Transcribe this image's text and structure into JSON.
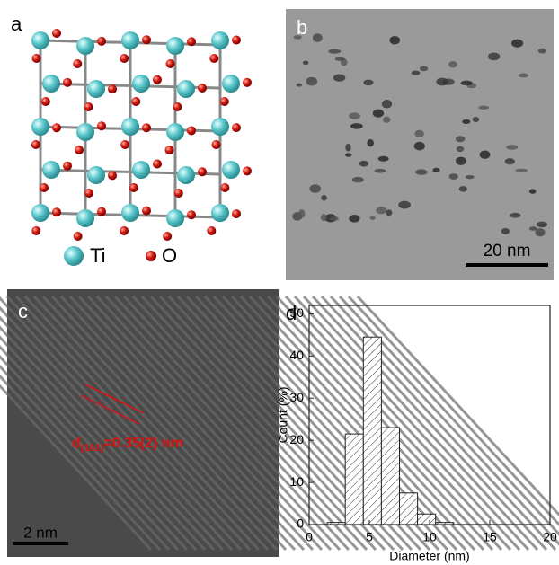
{
  "panels": {
    "a": {
      "label": "a",
      "legend": [
        "Ti",
        "O"
      ]
    },
    "b": {
      "label": "b",
      "scale_bar": "20 nm"
    },
    "c": {
      "label": "c",
      "scale_bar": "2 nm",
      "annotation": {
        "symbol": "d",
        "subscript": "(101)",
        "text": "=0.35(2) nm"
      }
    },
    "d": {
      "label": "d"
    }
  },
  "chart_data": {
    "type": "histogram",
    "xlabel": "Diameter (nm)",
    "ylabel": "Count (%)",
    "bins": [
      1.5,
      3,
      4.5,
      6,
      7.5,
      9,
      10.5,
      12
    ],
    "values": [
      0.5,
      21.5,
      44.5,
      23,
      7.5,
      2.5,
      0.5
    ],
    "color": "#ffffff",
    "hatch": true,
    "xlim": [
      0,
      20
    ],
    "ylim": [
      0,
      52
    ],
    "xticks": [
      0,
      5,
      10,
      15,
      20
    ],
    "yticks": [
      0,
      10,
      20,
      30,
      40,
      50
    ]
  }
}
